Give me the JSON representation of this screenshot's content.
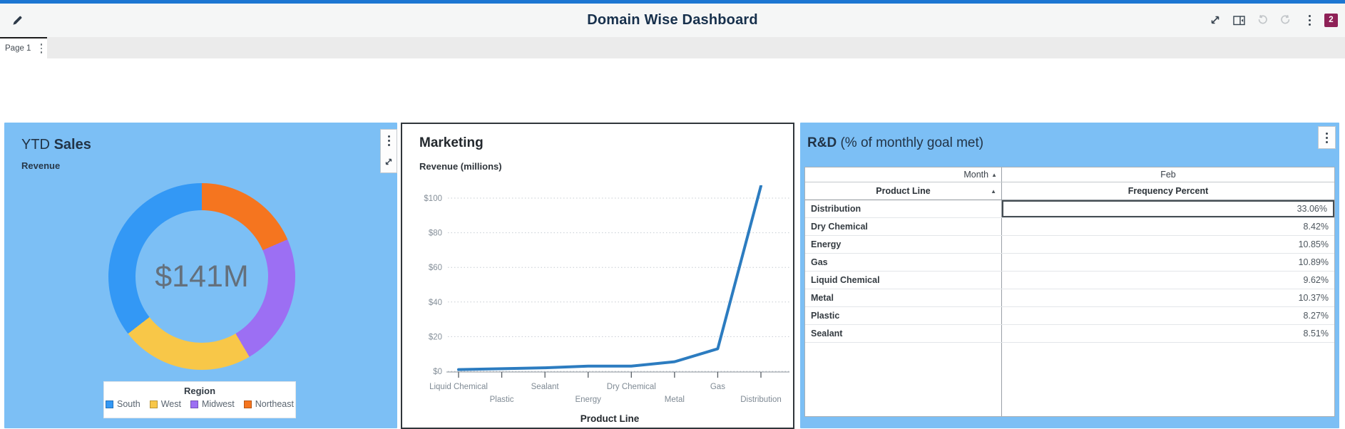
{
  "topbar": {
    "title": "Domain Wise Dashboard",
    "badge_count": "2",
    "badge_color": "#8E2157",
    "accent_color": "#1C76D2",
    "icons": [
      "edit-pencil",
      "expand",
      "collapse-right-panel",
      "undo",
      "redo",
      "more-options"
    ]
  },
  "page_tabs": [
    {
      "label": "Page 1"
    }
  ],
  "panels": {
    "ytd": {
      "title_prefix": "YTD",
      "title_bold": "Sales",
      "subtitle": "Revenue",
      "background": "#7CBFF5"
    },
    "rnd": {
      "title_bold": "R&D",
      "title_suffix": " (% of monthly goal met)",
      "background": "#7CBFF5"
    }
  },
  "chart_data": [
    {
      "type": "pie",
      "donut": true,
      "title": "YTD Sales",
      "subtitle": "Revenue",
      "center_label": "$141M",
      "legend_title": "Region",
      "legend_position": "bottom",
      "categories": [
        "South",
        "West",
        "Midwest",
        "Northeast"
      ],
      "values_pct": [
        35.5,
        23.0,
        23.0,
        18.5
      ],
      "colors": [
        "#3398F5",
        "#F8C748",
        "#9C6FF3",
        "#F5751F"
      ]
    },
    {
      "type": "line",
      "title": "Marketing",
      "subtitle": "Revenue (millions)",
      "xlabel": "Product Line",
      "categories": [
        "Liquid Chemical",
        "Plastic",
        "Sealant",
        "Energy",
        "Dry Chemical",
        "Metal",
        "Gas",
        "Distribution"
      ],
      "values": [
        1,
        1.5,
        2,
        3,
        3,
        5.5,
        13,
        107
      ],
      "ylim": [
        0,
        110
      ],
      "yticks": [
        0,
        20,
        40,
        60,
        80,
        100
      ],
      "ytick_labels": [
        "$0",
        "$20",
        "$40",
        "$60",
        "$80",
        "$100"
      ],
      "grid": "dotted-horizontal",
      "line_color": "#2C7CC0"
    },
    {
      "type": "table",
      "title": "R&D (% of monthly goal met)",
      "group_header": {
        "label": "Month",
        "value": "Feb",
        "sort": "▲"
      },
      "columns": [
        "Product Line",
        "Frequency Percent"
      ],
      "column_sort": "▲",
      "rows": [
        [
          "Distribution",
          "33.06%"
        ],
        [
          "Dry Chemical",
          "8.42%"
        ],
        [
          "Energy",
          "10.85%"
        ],
        [
          "Gas",
          "10.89%"
        ],
        [
          "Liquid Chemical",
          "9.62%"
        ],
        [
          "Metal",
          "10.37%"
        ],
        [
          "Plastic",
          "8.27%"
        ],
        [
          "Sealant",
          "8.51%"
        ]
      ],
      "selected_row_index": 0,
      "selected_column": "Frequency Percent"
    }
  ]
}
